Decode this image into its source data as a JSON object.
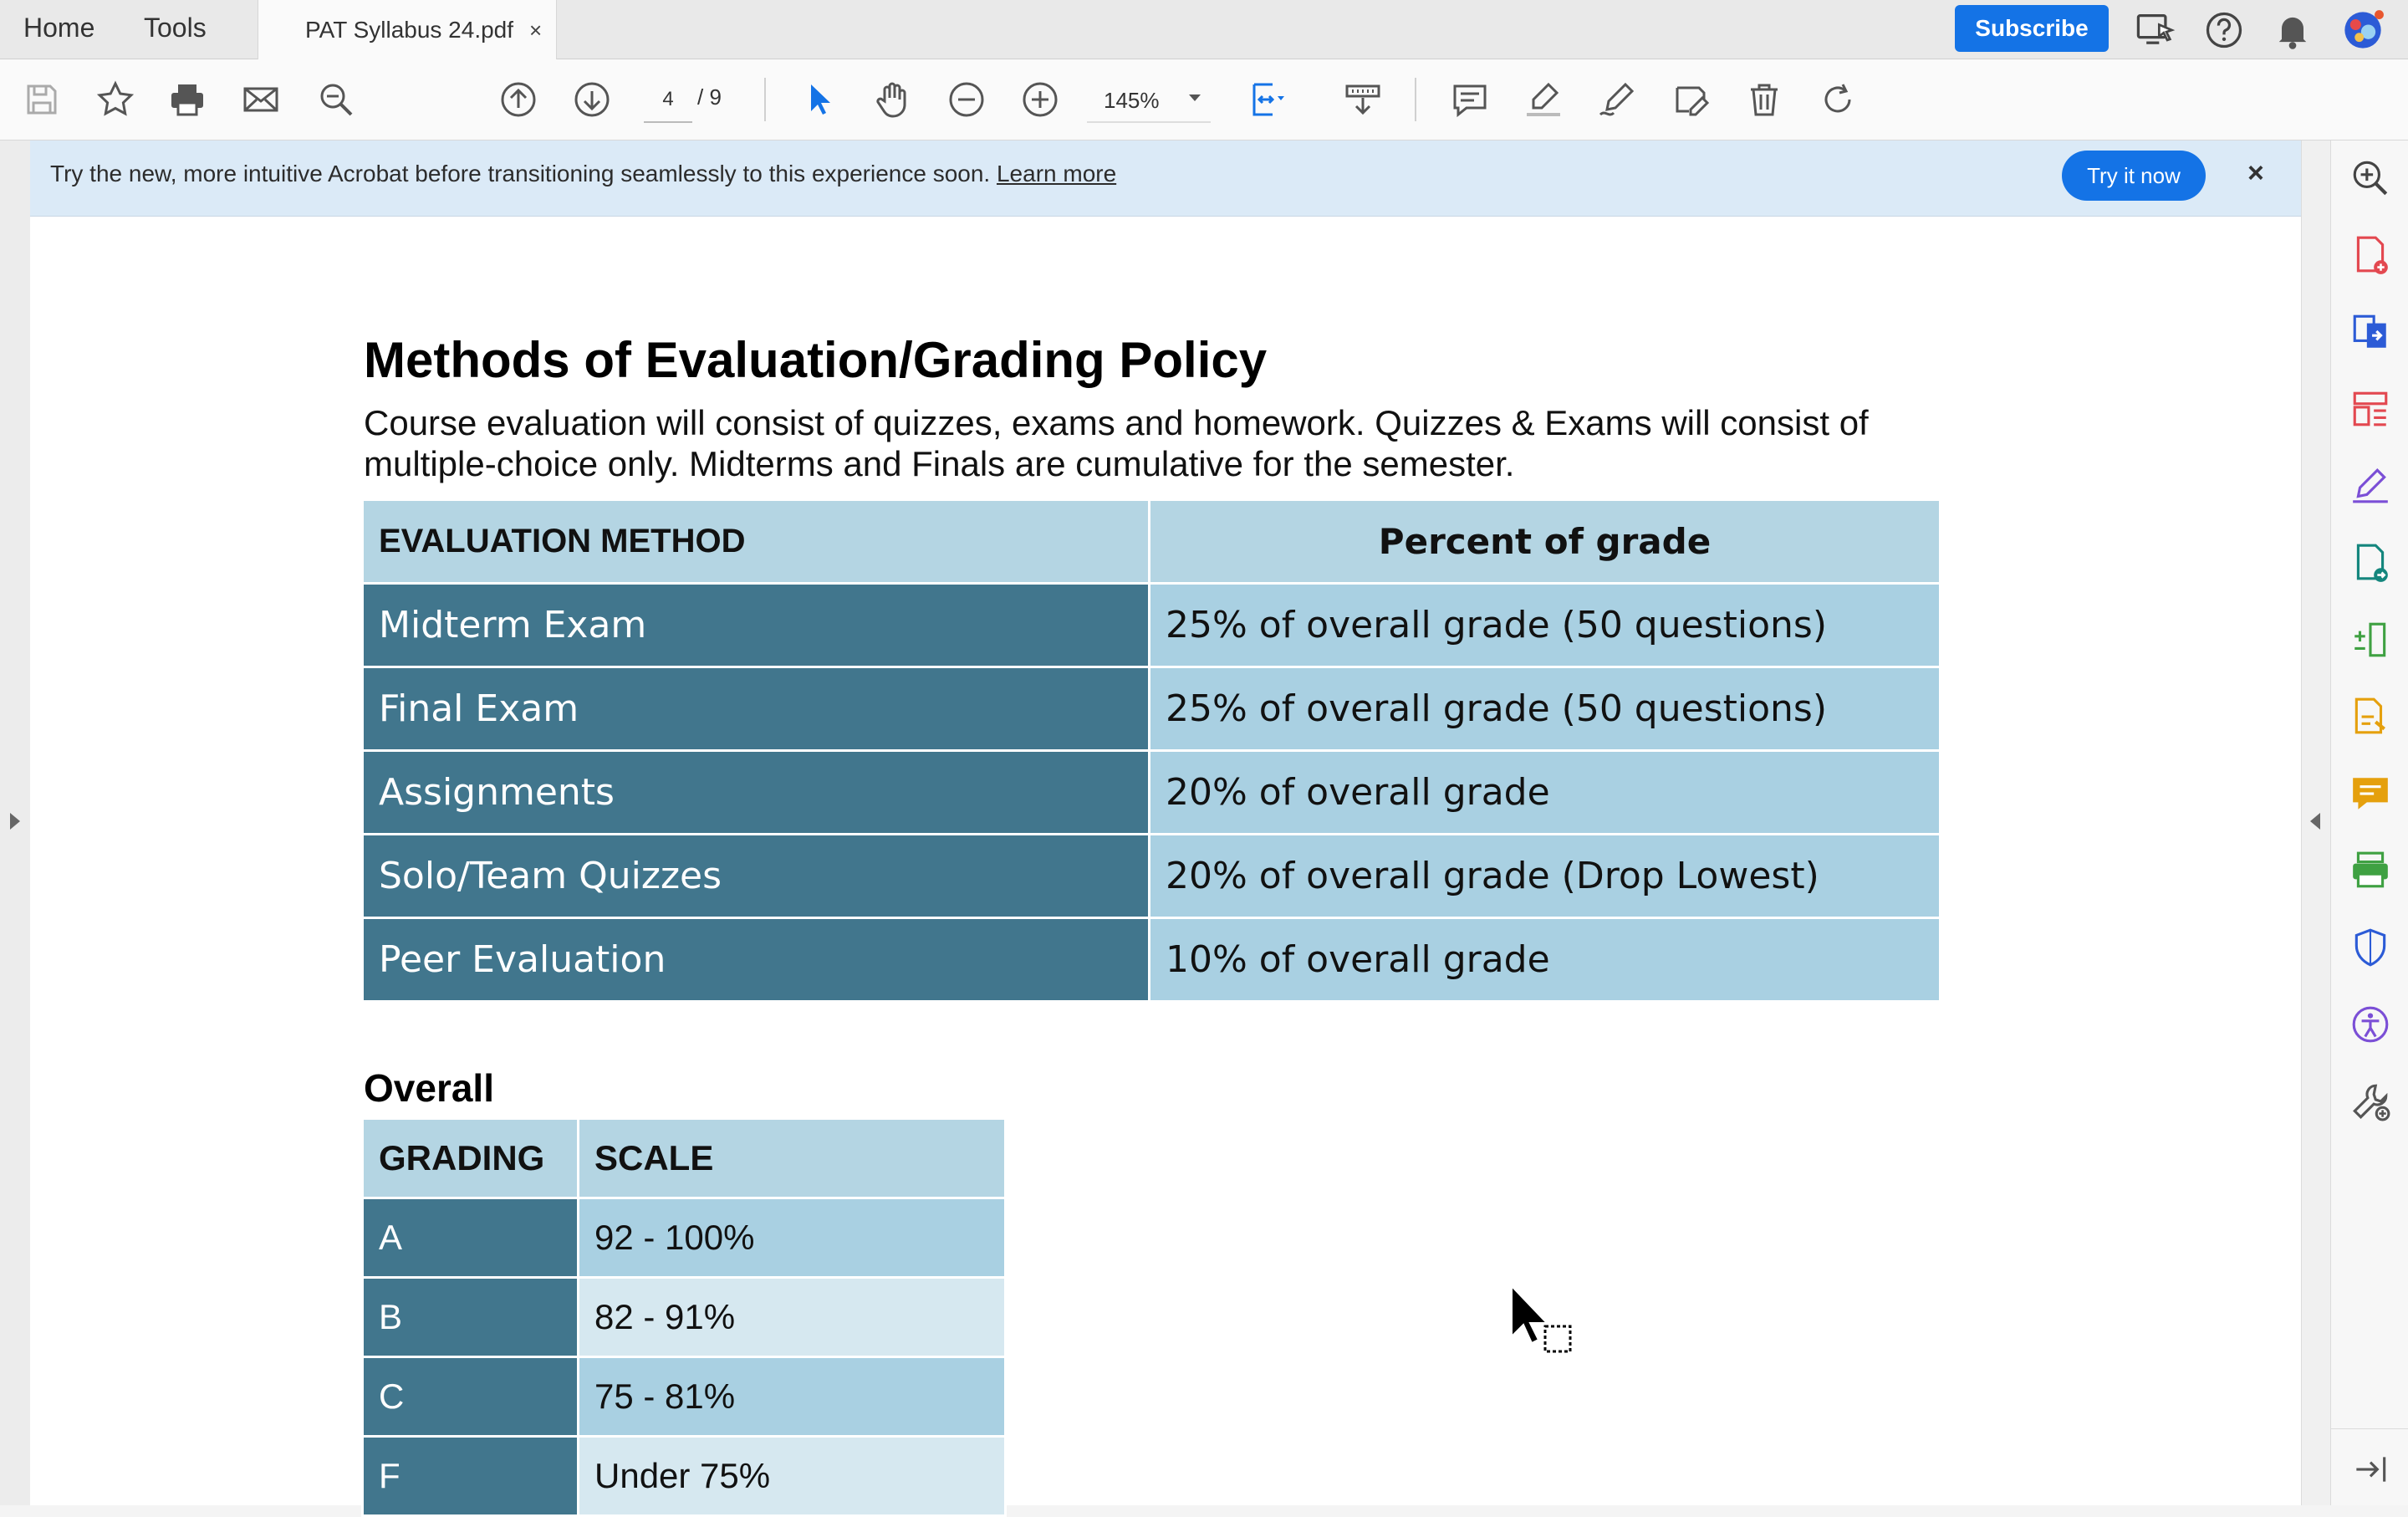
{
  "tabs": {
    "home": "Home",
    "tools": "Tools",
    "document": "PAT Syllabus 24.pdf",
    "close": "×"
  },
  "header": {
    "subscribe_label": "Subscribe"
  },
  "toolbar": {
    "page_current": "4",
    "page_total": "/ 9",
    "zoom": "145%"
  },
  "banner": {
    "message": "Try the new, more intuitive Acrobat before transitioning seamlessly to this experience soon.",
    "link": "Learn more",
    "try_label": "Try it now",
    "close": "×"
  },
  "document": {
    "heading": "Methods of Evaluation/Grading Policy",
    "intro_line1": "Course evaluation will consist of quizzes, exams and homework.  Quizzes & Exams will consist of",
    "intro_line2": "multiple-choice only.  Midterms and Finals are cumulative for the semester.",
    "evaluation_table": {
      "headers": [
        "EVALUATION METHOD",
        "Percent of grade"
      ],
      "rows": [
        {
          "method": "Midterm Exam",
          "percent": "25% of overall grade (50 questions)"
        },
        {
          "method": "Final Exam",
          "percent": "25% of overall grade (50 questions)"
        },
        {
          "method": "Assignments",
          "percent": "20% of overall grade"
        },
        {
          "method": "Solo/Team Quizzes",
          "percent": "20% of overall grade (Drop Lowest)"
        },
        {
          "method": "Peer Evaluation",
          "percent": "10% of overall grade"
        }
      ]
    },
    "overall_heading": "Overall",
    "grading_table": {
      "headers": [
        "GRADING",
        "SCALE"
      ],
      "rows": [
        {
          "grade": "A",
          "range": "92 - 100%"
        },
        {
          "grade": "B",
          "range": "82 - 91%"
        },
        {
          "grade": "C",
          "range": "75 - 81%"
        },
        {
          "grade": "F",
          "range": "Under 75%"
        }
      ]
    }
  },
  "icons": {
    "toolbar": [
      "save-icon",
      "bookmark-star-icon",
      "print-icon",
      "email-icon",
      "find-icon",
      "page-up-icon",
      "page-down-icon",
      "select-cursor-icon",
      "hand-tool-icon",
      "zoom-out-icon",
      "zoom-in-icon",
      "fit-page-icon",
      "scroll-mode-icon",
      "comment-icon",
      "highlight-icon",
      "draw-pen-icon",
      "edit-text-icon",
      "delete-icon",
      "rotate-icon"
    ],
    "rail": [
      "zoom-search-icon",
      "create-pdf-icon",
      "export-pdf-icon",
      "organize-pages-icon",
      "fill-sign-icon",
      "edit-pdf-icon",
      "compress-icon",
      "request-signature-icon",
      "comment-icon",
      "scan-icon",
      "protect-icon",
      "accessibility-icon",
      "more-tools-icon"
    ]
  },
  "colors": {
    "accent": "#1473e6",
    "table_dark": "#41768d",
    "table_header": "#b4d5e3",
    "table_value": "#a9d0e2",
    "table_value_light": "#d6e8f0",
    "banner": "#dbeaf7"
  }
}
